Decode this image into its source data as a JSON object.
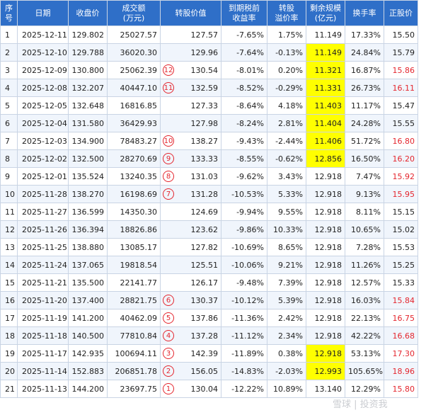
{
  "columns": [
    {
      "line1": "序",
      "line2": "号"
    },
    {
      "line1": "日期",
      "line2": ""
    },
    {
      "line1": "收盘价",
      "line2": ""
    },
    {
      "line1": "成交额",
      "line2": "(万元)"
    },
    {
      "line1": "转股价值",
      "line2": ""
    },
    {
      "line1": "到期税前",
      "line2": "收益率"
    },
    {
      "line1": "转股",
      "line2": "溢价率"
    },
    {
      "line1": "剩余规模",
      "line2": "(亿元)"
    },
    {
      "line1": "换手率",
      "line2": ""
    },
    {
      "line1": "正股价",
      "line2": ""
    }
  ],
  "rows": [
    {
      "seq": "1",
      "date": "2025-12-11",
      "close": "129.802",
      "amount": "25027.57",
      "marker": "",
      "conv_value": "127.57",
      "ytm": "-7.65%",
      "premium": "1.75%",
      "remaining": "11.149",
      "remaining_highlight": false,
      "turnover": "17.33%",
      "stock": "15.50",
      "stock_up": false
    },
    {
      "seq": "2",
      "date": "2025-12-10",
      "close": "129.788",
      "amount": "36020.30",
      "marker": "",
      "conv_value": "129.96",
      "ytm": "-7.64%",
      "premium": "-0.13%",
      "remaining": "11.149",
      "remaining_highlight": true,
      "turnover": "24.84%",
      "stock": "15.79",
      "stock_up": false
    },
    {
      "seq": "3",
      "date": "2025-12-09",
      "close": "130.800",
      "amount": "25062.39",
      "marker": "12",
      "conv_value": "130.54",
      "ytm": "-8.01%",
      "premium": "0.20%",
      "remaining": "11.321",
      "remaining_highlight": true,
      "turnover": "16.87%",
      "stock": "15.86",
      "stock_up": true
    },
    {
      "seq": "4",
      "date": "2025-12-08",
      "close": "132.207",
      "amount": "40447.10",
      "marker": "11",
      "conv_value": "132.59",
      "ytm": "-8.52%",
      "premium": "-0.29%",
      "remaining": "11.331",
      "remaining_highlight": true,
      "turnover": "26.73%",
      "stock": "16.11",
      "stock_up": true
    },
    {
      "seq": "5",
      "date": "2025-12-05",
      "close": "132.648",
      "amount": "16816.85",
      "marker": "",
      "conv_value": "127.33",
      "ytm": "-8.64%",
      "premium": "4.18%",
      "remaining": "11.403",
      "remaining_highlight": true,
      "turnover": "11.17%",
      "stock": "15.47",
      "stock_up": false
    },
    {
      "seq": "6",
      "date": "2025-12-04",
      "close": "131.580",
      "amount": "36429.93",
      "marker": "",
      "conv_value": "127.98",
      "ytm": "-8.24%",
      "premium": "2.81%",
      "remaining": "11.404",
      "remaining_highlight": true,
      "turnover": "24.28%",
      "stock": "15.55",
      "stock_up": false
    },
    {
      "seq": "7",
      "date": "2025-12-03",
      "close": "134.900",
      "amount": "78483.27",
      "marker": "10",
      "conv_value": "138.27",
      "ytm": "-9.43%",
      "premium": "-2.44%",
      "remaining": "11.406",
      "remaining_highlight": true,
      "turnover": "51.72%",
      "stock": "16.80",
      "stock_up": true
    },
    {
      "seq": "8",
      "date": "2025-12-02",
      "close": "132.500",
      "amount": "28270.69",
      "marker": "9",
      "conv_value": "133.33",
      "ytm": "-8.55%",
      "premium": "-0.62%",
      "remaining": "12.856",
      "remaining_highlight": true,
      "turnover": "16.50%",
      "stock": "16.20",
      "stock_up": true
    },
    {
      "seq": "9",
      "date": "2025-12-01",
      "close": "135.524",
      "amount": "13240.35",
      "marker": "8",
      "conv_value": "131.03",
      "ytm": "-9.62%",
      "premium": "3.43%",
      "remaining": "12.918",
      "remaining_highlight": false,
      "turnover": "7.47%",
      "stock": "15.92",
      "stock_up": true
    },
    {
      "seq": "10",
      "date": "2025-11-28",
      "close": "138.270",
      "amount": "16198.69",
      "marker": "7",
      "conv_value": "131.28",
      "ytm": "-10.53%",
      "premium": "5.33%",
      "remaining": "12.918",
      "remaining_highlight": false,
      "turnover": "9.13%",
      "stock": "15.95",
      "stock_up": true
    },
    {
      "seq": "11",
      "date": "2025-11-27",
      "close": "136.599",
      "amount": "14350.30",
      "marker": "",
      "conv_value": "124.69",
      "ytm": "-9.94%",
      "premium": "9.55%",
      "remaining": "12.918",
      "remaining_highlight": false,
      "turnover": "8.11%",
      "stock": "15.15",
      "stock_up": false
    },
    {
      "seq": "12",
      "date": "2025-11-26",
      "close": "136.394",
      "amount": "18826.86",
      "marker": "",
      "conv_value": "123.62",
      "ytm": "-9.86%",
      "premium": "10.33%",
      "remaining": "12.918",
      "remaining_highlight": false,
      "turnover": "10.65%",
      "stock": "15.02",
      "stock_up": false
    },
    {
      "seq": "13",
      "date": "2025-11-25",
      "close": "138.880",
      "amount": "13085.17",
      "marker": "",
      "conv_value": "127.82",
      "ytm": "-10.69%",
      "premium": "8.65%",
      "remaining": "12.918",
      "remaining_highlight": false,
      "turnover": "7.28%",
      "stock": "15.53",
      "stock_up": false
    },
    {
      "seq": "14",
      "date": "2025-11-24",
      "close": "137.065",
      "amount": "19818.54",
      "marker": "",
      "conv_value": "125.51",
      "ytm": "-10.06%",
      "premium": "9.21%",
      "remaining": "12.918",
      "remaining_highlight": false,
      "turnover": "11.26%",
      "stock": "15.25",
      "stock_up": false
    },
    {
      "seq": "15",
      "date": "2025-11-21",
      "close": "135.500",
      "amount": "22141.77",
      "marker": "",
      "conv_value": "126.17",
      "ytm": "-9.48%",
      "premium": "7.39%",
      "remaining": "12.918",
      "remaining_highlight": false,
      "turnover": "12.57%",
      "stock": "15.33",
      "stock_up": false
    },
    {
      "seq": "16",
      "date": "2025-11-20",
      "close": "137.400",
      "amount": "28821.75",
      "marker": "6",
      "conv_value": "130.37",
      "ytm": "-10.12%",
      "premium": "5.39%",
      "remaining": "12.918",
      "remaining_highlight": false,
      "turnover": "16.03%",
      "stock": "15.84",
      "stock_up": true
    },
    {
      "seq": "17",
      "date": "2025-11-19",
      "close": "141.200",
      "amount": "40462.09",
      "marker": "5",
      "conv_value": "137.86",
      "ytm": "-11.36%",
      "premium": "2.42%",
      "remaining": "12.918",
      "remaining_highlight": false,
      "turnover": "22.13%",
      "stock": "16.75",
      "stock_up": true
    },
    {
      "seq": "18",
      "date": "2025-11-18",
      "close": "140.500",
      "amount": "77810.84",
      "marker": "4",
      "conv_value": "137.28",
      "ytm": "-11.12%",
      "premium": "2.34%",
      "remaining": "12.918",
      "remaining_highlight": false,
      "turnover": "42.22%",
      "stock": "16.68",
      "stock_up": true
    },
    {
      "seq": "19",
      "date": "2025-11-17",
      "close": "142.935",
      "amount": "100694.11",
      "marker": "3",
      "conv_value": "142.39",
      "ytm": "-11.89%",
      "premium": "0.38%",
      "remaining": "12.918",
      "remaining_highlight": true,
      "turnover": "53.13%",
      "stock": "17.30",
      "stock_up": true
    },
    {
      "seq": "20",
      "date": "2025-11-14",
      "close": "152.883",
      "amount": "206851.78",
      "marker": "2",
      "conv_value": "156.05",
      "ytm": "-14.83%",
      "premium": "-2.03%",
      "remaining": "12.993",
      "remaining_highlight": true,
      "turnover": "105.65%",
      "stock": "18.96",
      "stock_up": true
    },
    {
      "seq": "21",
      "date": "2025-11-13",
      "close": "144.200",
      "amount": "23697.75",
      "marker": "1",
      "conv_value": "130.04",
      "ytm": "-12.22%",
      "premium": "10.89%",
      "remaining": "13.140",
      "remaining_highlight": false,
      "turnover": "12.29%",
      "stock": "15.80",
      "stock_up": true
    }
  ],
  "watermark": "雪球 | 投资我",
  "colors": {
    "header_bg": "#2f6fc8",
    "highlight": "#ffff00",
    "up_red": "#e4262e",
    "border": "#c9d4e4"
  }
}
